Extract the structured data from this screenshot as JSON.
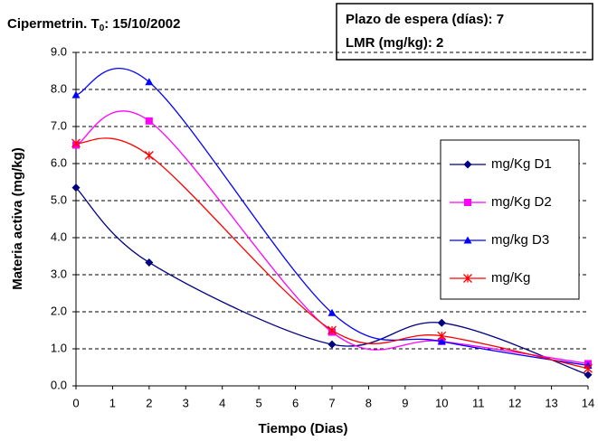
{
  "chart_data": {
    "type": "line",
    "title": [
      "Cipermetrin. T",
      "0",
      ": 15/10/2002"
    ],
    "annotations": [
      "Plazo de espera (días): 7",
      "LMR (mg/kg): 2"
    ],
    "x_label": "Tiempo (Dias)",
    "y_label": "Materia activa (mg/kg)",
    "x": [
      0,
      2,
      7,
      10,
      14
    ],
    "series": [
      {
        "name": "mg/Kg D1",
        "color": "#000080",
        "marker": "diamond",
        "values": [
          5.35,
          3.33,
          1.12,
          1.7,
          0.3
        ]
      },
      {
        "name": "mg/Kg D2",
        "color": "#ff00ff",
        "marker": "square",
        "values": [
          6.5,
          7.15,
          1.45,
          1.2,
          0.6
        ]
      },
      {
        "name": "mg/kg D3",
        "color": "#0000ff",
        "marker": "triangle",
        "values": [
          7.85,
          8.2,
          1.97,
          1.2,
          0.55
        ]
      },
      {
        "name": "mg/Kg",
        "color": "#ff0000",
        "marker": "star",
        "values": [
          6.55,
          6.22,
          1.5,
          1.35,
          0.47
        ]
      }
    ],
    "xlim": [
      0,
      14
    ],
    "xticks": [
      0,
      1,
      2,
      3,
      4,
      5,
      6,
      7,
      8,
      9,
      10,
      11,
      12,
      13,
      14
    ],
    "ylim": [
      0,
      9
    ],
    "yticks": [
      {
        "value": 0,
        "label": "0.0"
      },
      {
        "value": 1,
        "label": "1.0"
      },
      {
        "value": 2,
        "label": "2.0"
      },
      {
        "value": 3,
        "label": "3.0"
      },
      {
        "value": 4,
        "label": "4.0"
      },
      {
        "value": 5,
        "label": "5.0"
      },
      {
        "value": 6,
        "label": "6.0"
      },
      {
        "value": 7,
        "label": "7.0"
      },
      {
        "value": 8,
        "label": "8.0"
      },
      {
        "value": 9,
        "label": "9.0"
      }
    ],
    "grid": true,
    "smooth": true
  }
}
